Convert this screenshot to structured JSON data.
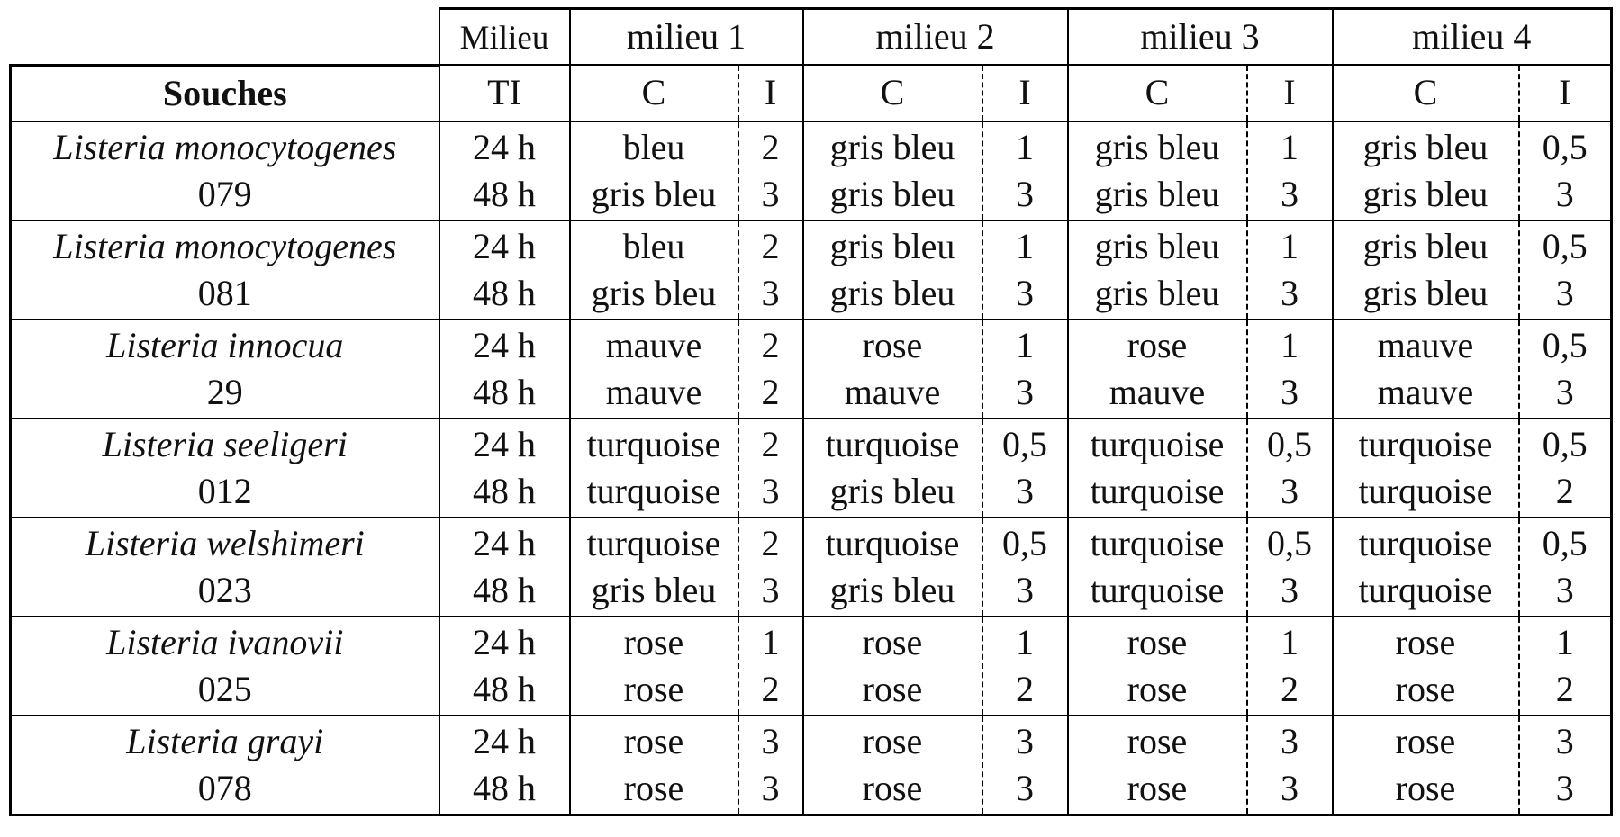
{
  "header": {
    "milieu_label": "Milieu",
    "souches_label": "Souches",
    "ti_label": "TI",
    "milieux": [
      "milieu 1",
      "milieu 2",
      "milieu 3",
      "milieu 4"
    ],
    "c_label": "C",
    "i_label": "I"
  },
  "rows": [
    {
      "species": "Listeria monocytogenes",
      "code": "079",
      "t24": "24 h",
      "t48": "48 h",
      "m": [
        {
          "c24": "bleu",
          "i24": "2",
          "c48": "gris bleu",
          "i48": "3"
        },
        {
          "c24": "gris bleu",
          "i24": "1",
          "c48": "gris bleu",
          "i48": "3"
        },
        {
          "c24": "gris bleu",
          "i24": "1",
          "c48": "gris bleu",
          "i48": "3"
        },
        {
          "c24": "gris bleu",
          "i24": "0,5",
          "c48": "gris bleu",
          "i48": "3"
        }
      ]
    },
    {
      "species": "Listeria monocytogenes",
      "code": "081",
      "t24": "24 h",
      "t48": "48 h",
      "m": [
        {
          "c24": "bleu",
          "i24": "2",
          "c48": "gris bleu",
          "i48": "3"
        },
        {
          "c24": "gris bleu",
          "i24": "1",
          "c48": "gris bleu",
          "i48": "3"
        },
        {
          "c24": "gris bleu",
          "i24": "1",
          "c48": "gris bleu",
          "i48": "3"
        },
        {
          "c24": "gris bleu",
          "i24": "0,5",
          "c48": "gris bleu",
          "i48": "3"
        }
      ]
    },
    {
      "species": "Listeria innocua",
      "code": "29",
      "t24": "24 h",
      "t48": "48 h",
      "m": [
        {
          "c24": "mauve",
          "i24": "2",
          "c48": "mauve",
          "i48": "2"
        },
        {
          "c24": "rose",
          "i24": "1",
          "c48": "mauve",
          "i48": "3"
        },
        {
          "c24": "rose",
          "i24": "1",
          "c48": "mauve",
          "i48": "3"
        },
        {
          "c24": "mauve",
          "i24": "0,5",
          "c48": "mauve",
          "i48": "3"
        }
      ]
    },
    {
      "species": "Listeria seeligeri",
      "code": "012",
      "t24": "24 h",
      "t48": "48 h",
      "m": [
        {
          "c24": "turquoise",
          "i24": "2",
          "c48": "turquoise",
          "i48": "3"
        },
        {
          "c24": "turquoise",
          "i24": "0,5",
          "c48": "gris bleu",
          "i48": "3"
        },
        {
          "c24": "turquoise",
          "i24": "0,5",
          "c48": "turquoise",
          "i48": "3"
        },
        {
          "c24": "turquoise",
          "i24": "0,5",
          "c48": "turquoise",
          "i48": "2"
        }
      ]
    },
    {
      "species": "Listeria welshimeri",
      "code": "023",
      "t24": "24 h",
      "t48": "48 h",
      "m": [
        {
          "c24": "turquoise",
          "i24": "2",
          "c48": "gris bleu",
          "i48": "3"
        },
        {
          "c24": "turquoise",
          "i24": "0,5",
          "c48": "gris bleu",
          "i48": "3"
        },
        {
          "c24": "turquoise",
          "i24": "0,5",
          "c48": "turquoise",
          "i48": "3"
        },
        {
          "c24": "turquoise",
          "i24": "0,5",
          "c48": "turquoise",
          "i48": "3"
        }
      ]
    },
    {
      "species": "Listeria ivanovii",
      "code": "025",
      "t24": "24 h",
      "t48": "48 h",
      "m": [
        {
          "c24": "rose",
          "i24": "1",
          "c48": "rose",
          "i48": "2"
        },
        {
          "c24": "rose",
          "i24": "1",
          "c48": "rose",
          "i48": "2"
        },
        {
          "c24": "rose",
          "i24": "1",
          "c48": "rose",
          "i48": "2"
        },
        {
          "c24": "rose",
          "i24": "1",
          "c48": "rose",
          "i48": "2"
        }
      ]
    },
    {
      "species": "Listeria grayi",
      "code": "078",
      "t24": "24 h",
      "t48": "48 h",
      "m": [
        {
          "c24": "rose",
          "i24": "3",
          "c48": "rose",
          "i48": "3"
        },
        {
          "c24": "rose",
          "i24": "3",
          "c48": "rose",
          "i48": "3"
        },
        {
          "c24": "rose",
          "i24": "3",
          "c48": "rose",
          "i48": "3"
        },
        {
          "c24": "rose",
          "i24": "3",
          "c48": "rose",
          "i48": "3"
        }
      ]
    }
  ]
}
